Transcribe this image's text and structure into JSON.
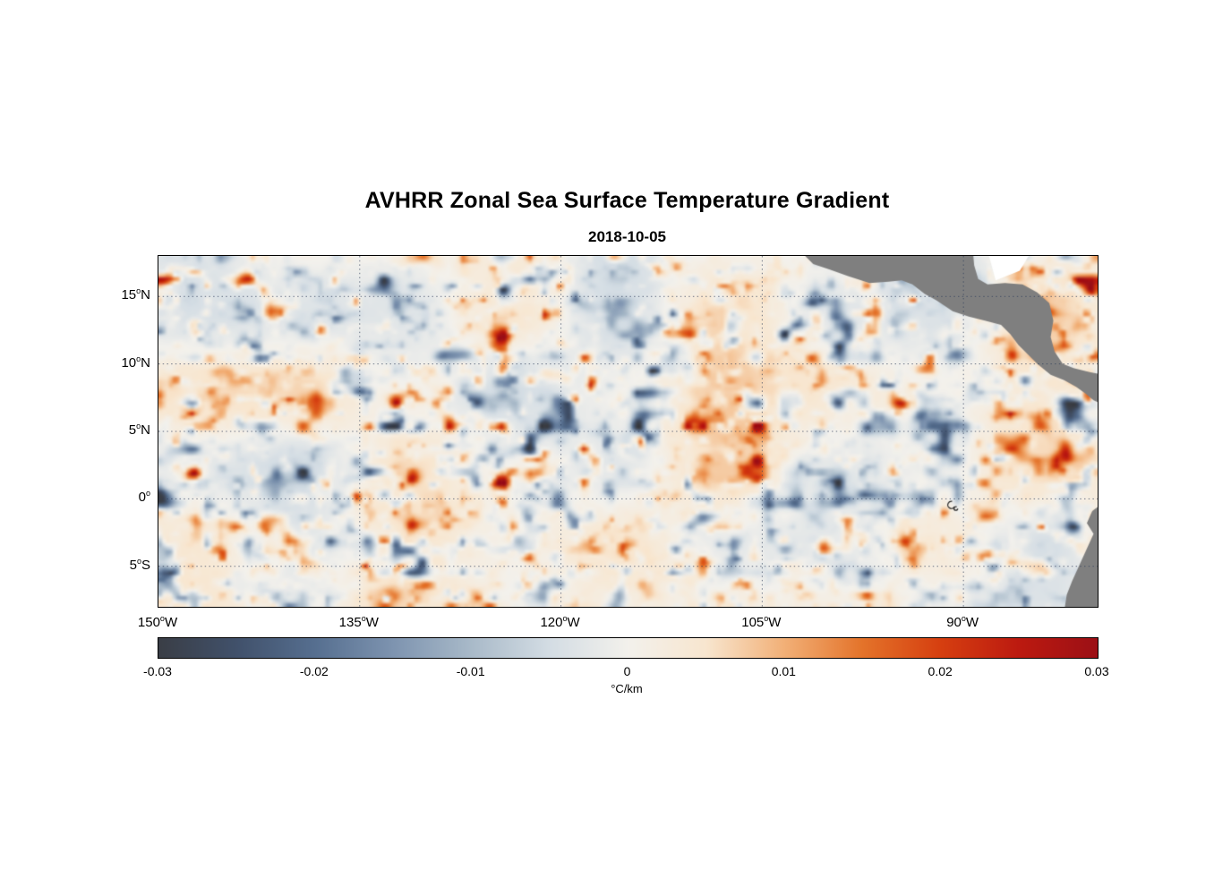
{
  "header": {
    "title": "AVHRR Zonal Sea Surface Temperature Gradient",
    "subtitle": "2018-10-05"
  },
  "chart_data": {
    "type": "heatmap",
    "title": "AVHRR Zonal Sea Surface Temperature Gradient",
    "date": "2018-10-05",
    "x_axis": {
      "quantity": "longitude",
      "range": [
        -150,
        -80
      ],
      "ticks": [
        {
          "value": -150,
          "label": "150",
          "deg": "o",
          "suffix": "W"
        },
        {
          "value": -135,
          "label": "135",
          "deg": "o",
          "suffix": "W"
        },
        {
          "value": -120,
          "label": "120",
          "deg": "o",
          "suffix": "W"
        },
        {
          "value": -105,
          "label": "105",
          "deg": "o",
          "suffix": "W"
        },
        {
          "value": -90,
          "label": "90",
          "deg": "o",
          "suffix": "W"
        }
      ]
    },
    "y_axis": {
      "quantity": "latitude",
      "range": [
        -8,
        18
      ],
      "ticks": [
        {
          "value": 15,
          "label": "15",
          "deg": "o",
          "suffix": "N"
        },
        {
          "value": 10,
          "label": "10",
          "deg": "o",
          "suffix": "N"
        },
        {
          "value": 5,
          "label": "5",
          "deg": "o",
          "suffix": "N"
        },
        {
          "value": 0,
          "label": "0",
          "deg": "o",
          "suffix": ""
        },
        {
          "value": -5,
          "label": "5",
          "deg": "o",
          "suffix": "S"
        }
      ]
    },
    "grid": {
      "shown": true,
      "style": "dotted",
      "color": "#33415c"
    },
    "colorbar": {
      "label": "°C/km",
      "orientation": "horizontal",
      "range": [
        -0.03,
        0.03
      ],
      "ticks": [
        {
          "value": -0.03,
          "label": "-0.03"
        },
        {
          "value": -0.02,
          "label": "-0.02"
        },
        {
          "value": -0.01,
          "label": "-0.01"
        },
        {
          "value": 0,
          "label": "0"
        },
        {
          "value": 0.01,
          "label": "0.01"
        },
        {
          "value": 0.02,
          "label": "0.02"
        },
        {
          "value": 0.03,
          "label": "0.03"
        }
      ],
      "stops": [
        {
          "v": -0.03,
          "c": "#3a3e46"
        },
        {
          "v": -0.025,
          "c": "#41516b"
        },
        {
          "v": -0.02,
          "c": "#566f90"
        },
        {
          "v": -0.015,
          "c": "#7e94b0"
        },
        {
          "v": -0.01,
          "c": "#a9bac9"
        },
        {
          "v": -0.005,
          "c": "#d4dde4"
        },
        {
          "v": 0.0,
          "c": "#f3f1ec"
        },
        {
          "v": 0.005,
          "c": "#f8e6cf"
        },
        {
          "v": 0.01,
          "c": "#f2b077"
        },
        {
          "v": 0.015,
          "c": "#e4732a"
        },
        {
          "v": 0.02,
          "c": "#d63f10"
        },
        {
          "v": 0.025,
          "c": "#bc1a10"
        },
        {
          "v": 0.03,
          "c": "#9c1016"
        }
      ]
    },
    "land": {
      "color": "#7f7f7f",
      "polygons": [
        {
          "name": "mexico-central-america",
          "points": [
            [
              -102.2,
              18.4
            ],
            [
              -101.2,
              17.4
            ],
            [
              -100.0,
              17.0
            ],
            [
              -98.6,
              16.5
            ],
            [
              -97.0,
              16.0
            ],
            [
              -95.6,
              16.1
            ],
            [
              -94.6,
              16.2
            ],
            [
              -93.8,
              15.9
            ],
            [
              -92.9,
              15.2
            ],
            [
              -92.0,
              14.7
            ],
            [
              -90.8,
              13.9
            ],
            [
              -89.6,
              13.5
            ],
            [
              -88.4,
              13.2
            ],
            [
              -87.2,
              12.9
            ],
            [
              -86.5,
              12.2
            ],
            [
              -85.9,
              11.4
            ],
            [
              -85.3,
              10.8
            ],
            [
              -84.5,
              10.0
            ],
            [
              -83.5,
              9.2
            ],
            [
              -82.5,
              8.8
            ],
            [
              -81.6,
              8.3
            ],
            [
              -80.9,
              7.8
            ],
            [
              -80.3,
              7.3
            ],
            [
              -79.6,
              7.0
            ],
            [
              -79.6,
              9.2
            ],
            [
              -80.6,
              9.4
            ],
            [
              -81.8,
              9.7
            ],
            [
              -82.6,
              10.0
            ],
            [
              -83.2,
              10.9
            ],
            [
              -83.5,
              12.0
            ],
            [
              -83.3,
              13.2
            ],
            [
              -83.6,
              14.5
            ],
            [
              -84.5,
              15.3
            ],
            [
              -85.6,
              15.9
            ],
            [
              -86.9,
              16.0
            ],
            [
              -88.2,
              15.9
            ],
            [
              -88.9,
              16.3
            ],
            [
              -89.2,
              17.3
            ],
            [
              -89.3,
              18.4
            ]
          ]
        },
        {
          "name": "south-america",
          "points": [
            [
              -79.6,
              -0.3
            ],
            [
              -80.4,
              -0.9
            ],
            [
              -80.8,
              -1.8
            ],
            [
              -80.3,
              -2.6
            ],
            [
              -80.9,
              -3.9
            ],
            [
              -81.4,
              -5.0
            ],
            [
              -81.9,
              -6.1
            ],
            [
              -82.3,
              -7.1
            ],
            [
              -82.5,
              -8.4
            ],
            [
              -79.6,
              -8.4
            ]
          ]
        }
      ]
    },
    "mask_polygons": {
      "color": "#ffffff",
      "polygons": [
        {
          "name": "gulf-of-honduras-mask",
          "points": [
            [
              -88.2,
              18.4
            ],
            [
              -84.9,
              18.4
            ],
            [
              -85.8,
              16.9
            ],
            [
              -87.6,
              16.2
            ]
          ]
        }
      ]
    },
    "features": {
      "galapagos_contour": {
        "lon": -90.9,
        "lat": -0.45
      }
    },
    "field": {
      "description": "Mesoscale zonal SST gradient field: mostly near-zero pale background with scattered eastward (orange/red, up to +0.03 C/km) and westward (blue/dark slate, down to -0.03 C/km) gradient eddies, strongest between 0N-16N and along 85W-95W and 115W-125W.",
      "render": {
        "generator": "deterministic-value-noise",
        "seed": 7
      }
    }
  }
}
